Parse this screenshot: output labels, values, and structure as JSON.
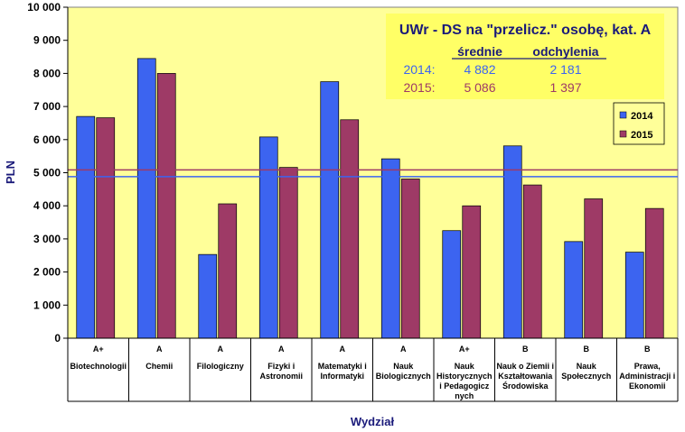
{
  "chart_data": {
    "type": "bar",
    "ylabel": "PLN",
    "xlabel": "Wydział",
    "ylim": [
      0,
      10000
    ],
    "yticks": [
      "0",
      "1 000",
      "2 000",
      "3 000",
      "4 000",
      "5 000",
      "6 000",
      "7 000",
      "8 000",
      "9 000",
      "10 000"
    ],
    "grid": false,
    "legend": "right",
    "categories": [
      {
        "cat": "A+",
        "lines": [
          "Biotechnologii"
        ]
      },
      {
        "cat": "A",
        "lines": [
          "Chemii"
        ]
      },
      {
        "cat": "A",
        "lines": [
          "Filologiczny"
        ]
      },
      {
        "cat": "A",
        "lines": [
          "Fizyki i",
          "Astronomii"
        ]
      },
      {
        "cat": "A",
        "lines": [
          "Matematyki i",
          "Informatyki"
        ]
      },
      {
        "cat": "A",
        "lines": [
          "Nauk",
          "Biologicznych"
        ]
      },
      {
        "cat": "A+",
        "lines": [
          "Nauk",
          "Historycznych",
          "i Pedagogicz",
          "nych"
        ]
      },
      {
        "cat": "B",
        "lines": [
          "Nauk o Ziemii i",
          "Kształtowania",
          "Środowiska"
        ]
      },
      {
        "cat": "B",
        "lines": [
          "Nauk",
          "Społecznych"
        ]
      },
      {
        "cat": "B",
        "lines": [
          "Prawa,",
          "Administracji i",
          "Ekonomii"
        ]
      }
    ],
    "series": [
      {
        "name": "2014",
        "color": "#3c64f0",
        "values": [
          6700,
          8450,
          2530,
          6080,
          7750,
          5420,
          3250,
          5810,
          2920,
          2600
        ]
      },
      {
        "name": "2015",
        "color": "#9e3a66",
        "values": [
          6660,
          8000,
          4060,
          5160,
          6600,
          4810,
          4000,
          4630,
          4210,
          3920
        ]
      }
    ],
    "reference_lines": [
      {
        "value": 4882,
        "color": "#3c64f0"
      },
      {
        "value": 5086,
        "color": "#9e3a66"
      }
    ],
    "annotation": {
      "title": "UWr - DS na \"przelicz.\" osobę, kat. A",
      "header_mean": "średnie",
      "header_dev": "odchylenia",
      "rows": [
        {
          "year": "2014:",
          "mean": "4 882",
          "dev": "2 181",
          "color": "#3c64f0"
        },
        {
          "year": "2015:",
          "mean": "5 086",
          "dev": "1 397",
          "color": "#9e3a66"
        }
      ]
    },
    "colors": {
      "plot_background": "#ffff99",
      "annotation_background": "#ffff66"
    }
  }
}
